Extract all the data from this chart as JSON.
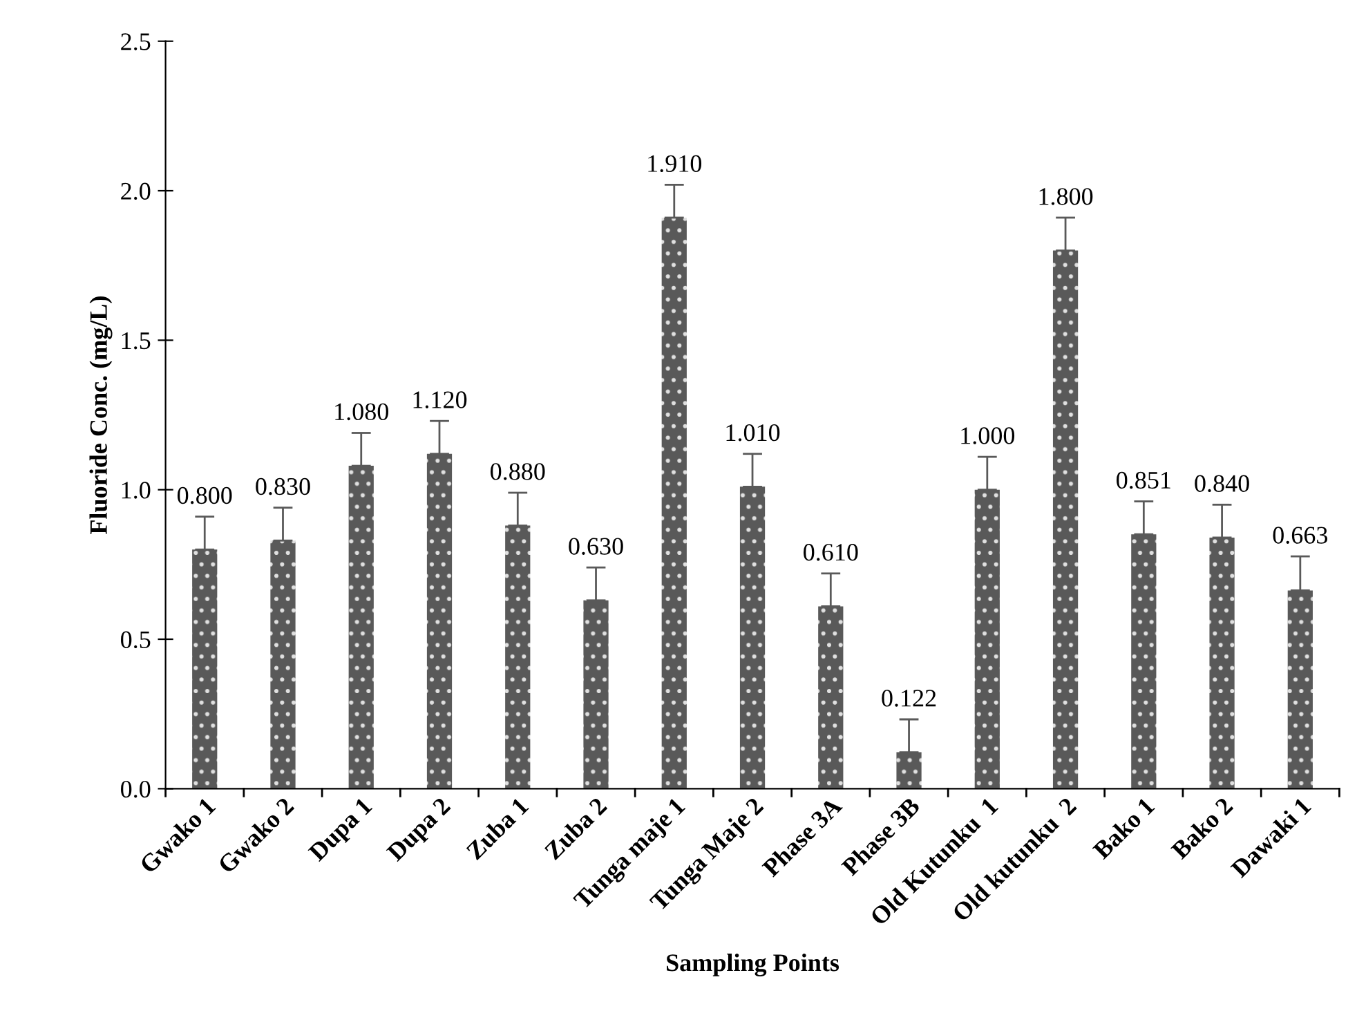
{
  "chart_data": {
    "type": "bar",
    "xlabel": "Sampling Points",
    "ylabel": "Fluoride Conc. (mg/L)",
    "categories": [
      "Gwako 1",
      "Gwako 2",
      "Dupa 1",
      "Dupa 2",
      "Zuba 1",
      "Zuba 2",
      "Tunga maje 1",
      "Tunga Maje 2",
      "Phase 3A",
      "Phase 3B",
      "Old Kutunku  1",
      "Old kutunku  2",
      "Bako 1",
      "Bako 2",
      "Dawaki 1"
    ],
    "values": [
      0.8,
      0.83,
      1.08,
      1.12,
      0.88,
      0.63,
      1.91,
      1.01,
      0.61,
      0.122,
      1.0,
      1.8,
      0.851,
      0.84,
      0.663
    ],
    "value_labels": [
      "0.800",
      "0.830",
      "1.080",
      "1.120",
      "0.880",
      "0.630",
      "1.910",
      "1.010",
      "0.610",
      "0.122",
      "1.000",
      "1.800",
      "0.851",
      "0.840",
      "0.663"
    ],
    "errors": [
      [
        0.8,
        0.91
      ],
      [
        0.83,
        0.94
      ],
      [
        1.08,
        1.19
      ],
      [
        1.12,
        1.23
      ],
      [
        0.88,
        0.99
      ],
      [
        0.63,
        0.74
      ],
      [
        1.91,
        2.02
      ],
      [
        1.01,
        1.12
      ],
      [
        0.61,
        0.72
      ],
      [
        0.122,
        0.232
      ],
      [
        1.0,
        1.11
      ],
      [
        1.8,
        1.91
      ],
      [
        0.851,
        0.961
      ],
      [
        0.84,
        0.95
      ],
      [
        0.663,
        0.777
      ]
    ],
    "color": "#595959",
    "ylim": [
      0,
      2.5
    ],
    "yticks": [
      {
        "value": 0,
        "label": "0.0"
      },
      {
        "value": 0.5,
        "label": "0.5"
      },
      {
        "value": 1,
        "label": "1.0"
      },
      {
        "value": 1.5,
        "label": "1.5"
      },
      {
        "value": 2,
        "label": "2.0"
      },
      {
        "value": 2.5,
        "label": "2.5"
      }
    ],
    "grid": false,
    "legend": false
  }
}
